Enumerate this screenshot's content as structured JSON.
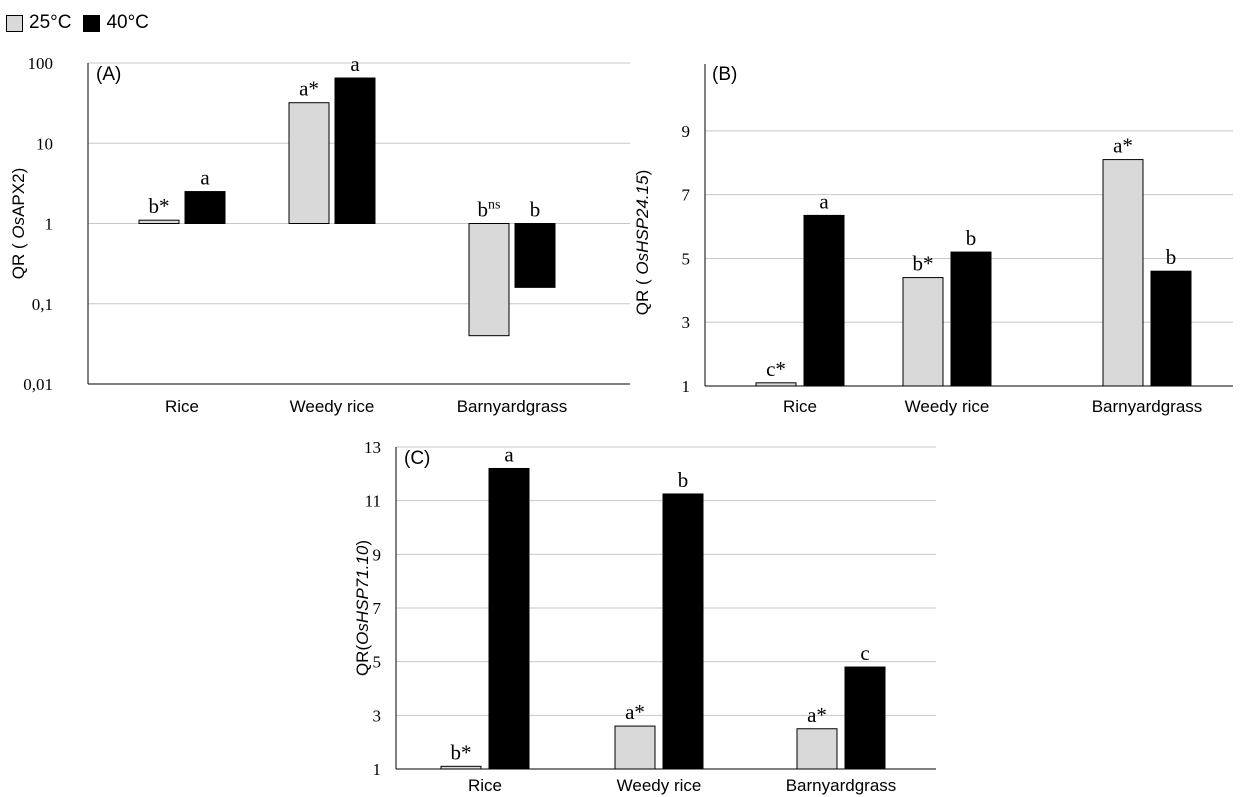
{
  "legend": {
    "items": [
      {
        "label": "25°C",
        "color": "#d9d9d9"
      },
      {
        "label": "40°C",
        "color": "#000000"
      }
    ]
  },
  "chart_data": [
    {
      "type": "bar",
      "panel_label": "(A)",
      "ylabel": {
        "prefix": "QR ( ",
        "italic": "Os",
        "rest": "APX2)"
      },
      "yscale": "log",
      "bar_baseline": 1,
      "ylim": [
        0.01,
        100
      ],
      "yticks": [
        {
          "value": 0.01,
          "label": "0,01"
        },
        {
          "value": 0.1,
          "label": "0,1"
        },
        {
          "value": 1,
          "label": "1"
        },
        {
          "value": 10,
          "label": "10"
        },
        {
          "value": 100,
          "label": "100"
        }
      ],
      "grid": true,
      "categories": [
        "Rice",
        "Weedy rice",
        "Barnyardgrass"
      ],
      "series": [
        {
          "name": "25°C",
          "values": [
            1.1,
            32,
            0.04
          ],
          "labels": [
            "b*",
            "a*",
            "bns"
          ]
        },
        {
          "name": "40°C",
          "values": [
            2.5,
            65,
            0.16
          ],
          "labels": [
            "a",
            "a",
            "b"
          ]
        }
      ]
    },
    {
      "type": "bar",
      "panel_label": "(B)",
      "ylabel": {
        "prefix": "QR ( ",
        "italic": "OsHSP24.15",
        "rest": ")"
      },
      "yscale": "linear",
      "bar_baseline": 1,
      "ylim": [
        1,
        10
      ],
      "yticks": [
        {
          "value": 1,
          "label": "1"
        },
        {
          "value": 3,
          "label": "3"
        },
        {
          "value": 5,
          "label": "5"
        },
        {
          "value": 7,
          "label": "7"
        },
        {
          "value": 9,
          "label": "9"
        }
      ],
      "grid": true,
      "categories": [
        "Rice",
        "Weedy rice",
        "Barnyardgrass"
      ],
      "series": [
        {
          "name": "25°C",
          "values": [
            1.1,
            4.4,
            8.1
          ],
          "labels": [
            "c*",
            "b*",
            "a*"
          ]
        },
        {
          "name": "40°C",
          "values": [
            6.35,
            5.2,
            4.6
          ],
          "labels": [
            "a",
            "b",
            "b"
          ]
        }
      ]
    },
    {
      "type": "bar",
      "panel_label": "(C)",
      "ylabel": {
        "prefix": "QR(",
        "italic": "OsHSP71.10",
        "rest": ")"
      },
      "yscale": "linear",
      "bar_baseline": 1,
      "ylim": [
        1,
        13
      ],
      "yticks": [
        {
          "value": 1,
          "label": "1"
        },
        {
          "value": 3,
          "label": "3"
        },
        {
          "value": 5,
          "label": "5"
        },
        {
          "value": 7,
          "label": "7"
        },
        {
          "value": 9,
          "label": "9"
        },
        {
          "value": 11,
          "label": "11"
        },
        {
          "value": 13,
          "label": "13"
        }
      ],
      "grid": true,
      "categories": [
        "Rice",
        "Weedy rice",
        "Barnyardgrass"
      ],
      "series": [
        {
          "name": "25°C",
          "values": [
            1.1,
            2.6,
            2.5
          ],
          "labels": [
            "b*",
            "a*",
            "a*"
          ]
        },
        {
          "name": "40°C",
          "values": [
            12.2,
            11.25,
            4.8
          ],
          "labels": [
            "a",
            "b",
            "c"
          ]
        }
      ]
    }
  ]
}
